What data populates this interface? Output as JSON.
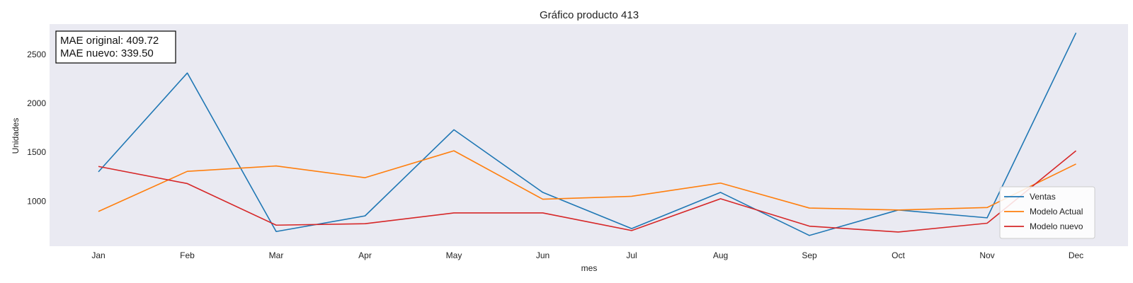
{
  "chart_data": {
    "type": "line",
    "title": "Gráfico producto 413",
    "xlabel": "mes",
    "ylabel": "Unidades",
    "categories": [
      "Jan",
      "Feb",
      "Mar",
      "Apr",
      "May",
      "Jun",
      "Jul",
      "Aug",
      "Sep",
      "Oct",
      "Nov",
      "Dec"
    ],
    "ylim": [
      540,
      2810
    ],
    "yticks": [
      1000,
      1500,
      2000,
      2500
    ],
    "grid": false,
    "legend_position": "bottom-right",
    "series": [
      {
        "name": "Ventas",
        "color": "#1f77b4",
        "values": [
          1300,
          2310,
          690,
          850,
          1730,
          1090,
          720,
          1090,
          650,
          910,
          830,
          2720
        ]
      },
      {
        "name": "Modelo Actual",
        "color": "#ff7f0e",
        "values": [
          895,
          1305,
          1360,
          1240,
          1515,
          1020,
          1050,
          1185,
          930,
          910,
          935,
          1380
        ]
      },
      {
        "name": "Modelo nuevo",
        "color": "#d62728",
        "values": [
          1355,
          1180,
          755,
          770,
          880,
          880,
          700,
          1025,
          745,
          685,
          775,
          1515
        ]
      }
    ],
    "annotation": {
      "line1": "MAE original: 409.72",
      "line2": "MAE nuevo: 339.50"
    }
  }
}
